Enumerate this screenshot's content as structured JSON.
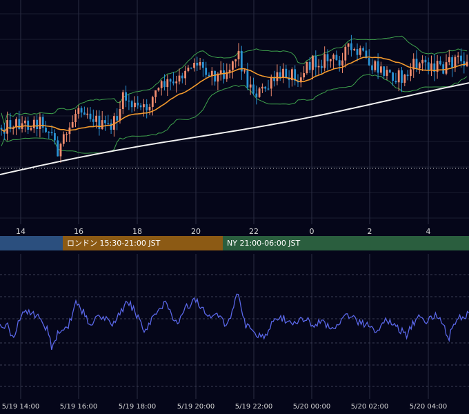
{
  "chart_data": [
    {
      "type": "candlestick",
      "panel": "price",
      "x_axis": {
        "labels": [
          "14",
          "16",
          "18",
          "20",
          "22",
          "0",
          "2",
          "4"
        ],
        "range_hours": [
          13.25,
          29.2
        ]
      },
      "grid": true,
      "reference_line_style": "dotted-white",
      "candles": [],
      "bollinger_bands_visible": true,
      "moving_averages_visible": [
        "orange",
        "white"
      ]
    },
    {
      "type": "line",
      "panel": "oscillator",
      "x_axis": {
        "labels": [
          "5/19 14:00",
          "5/19 16:00",
          "5/19 18:00",
          "5/19 20:00",
          "5/19 22:00",
          "5/20 00:00",
          "5/20 02:00",
          "5/20 04:00"
        ]
      },
      "grid": true
    }
  ],
  "sessions": [
    {
      "label": "",
      "color": "#2b4f7e"
    },
    {
      "label": "ロンドン 15:30-21:00 JST",
      "color": "#8c5a14"
    },
    {
      "label": "NY 21:00-06:00 JST",
      "color": "#2a5e3e"
    }
  ],
  "colors": {
    "background": "#050619",
    "grid": "#2a2d42",
    "candle_up": "#f08c6e",
    "candle_down": "#2a93d5",
    "bollinger": "#3fa34d",
    "ma_short": "#f39a2d",
    "ma_long": "#f2f2f2",
    "oscillator": "#5a67e8",
    "axis_text": "#d8d8d8"
  }
}
